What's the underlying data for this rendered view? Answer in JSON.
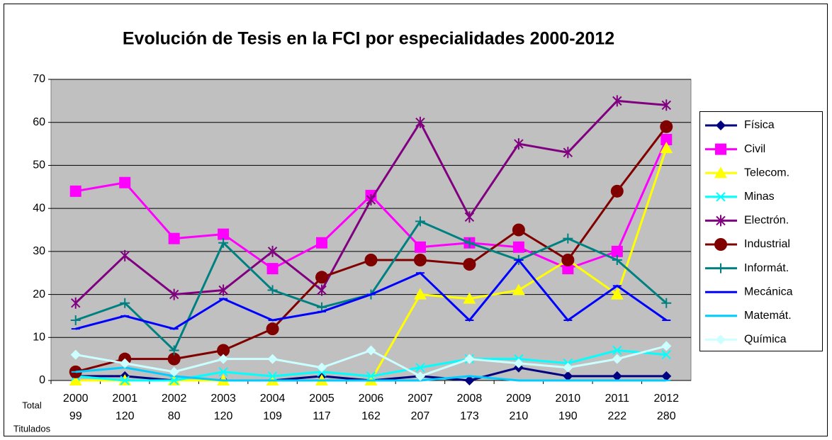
{
  "chart_data": {
    "type": "line",
    "title": "Evolución de Tesis en la FCI por especialidades 2000-2012",
    "categories": [
      "2000",
      "2001",
      "2002",
      "2003",
      "2004",
      "2005",
      "2006",
      "2007",
      "2008",
      "2009",
      "2010",
      "2011",
      "2012"
    ],
    "row_label": [
      "Total",
      "Titulados"
    ],
    "totals": [
      99,
      120,
      80,
      120,
      109,
      117,
      162,
      207,
      173,
      210,
      190,
      222,
      280
    ],
    "ylim": [
      0,
      70
    ],
    "yticks": [
      0,
      10,
      20,
      30,
      40,
      50,
      60,
      70
    ],
    "grid": true,
    "legend": "right",
    "series": [
      {
        "name": "Física",
        "color": "#000080",
        "marker": "diamond",
        "values": [
          1,
          1,
          0,
          0,
          0,
          1,
          0,
          1,
          0,
          3,
          1,
          1,
          1
        ]
      },
      {
        "name": "Civil",
        "color": "#ff00ff",
        "marker": "square",
        "values": [
          44,
          46,
          33,
          34,
          26,
          32,
          43,
          31,
          32,
          31,
          26,
          30,
          56
        ]
      },
      {
        "name": "Telecom.",
        "color": "#ffff00",
        "marker": "triangle",
        "values": [
          0,
          0,
          0,
          0,
          0,
          0,
          0,
          20,
          19,
          21,
          28,
          20,
          54
        ]
      },
      {
        "name": "Minas",
        "color": "#00ffff",
        "marker": "x",
        "values": [
          1,
          0,
          0,
          2,
          1,
          2,
          1,
          3,
          5,
          5,
          4,
          7,
          6
        ]
      },
      {
        "name": "Electrón.",
        "color": "#800080",
        "marker": "star",
        "values": [
          18,
          29,
          20,
          21,
          30,
          21,
          42,
          60,
          38,
          55,
          53,
          65,
          64
        ]
      },
      {
        "name": "Industrial",
        "color": "#800000",
        "marker": "circle",
        "values": [
          2,
          5,
          5,
          7,
          12,
          24,
          28,
          28,
          27,
          35,
          28,
          44,
          59
        ]
      },
      {
        "name": "Informát.",
        "color": "#008080",
        "marker": "plus",
        "values": [
          14,
          18,
          7,
          32,
          21,
          17,
          20,
          37,
          32,
          28,
          33,
          28,
          18
        ]
      },
      {
        "name": "Mecánica",
        "color": "#0000ff",
        "marker": "dash",
        "values": [
          12,
          15,
          12,
          19,
          14,
          16,
          20,
          25,
          14,
          28,
          14,
          22,
          14
        ]
      },
      {
        "name": "Matemát.",
        "color": "#00ccff",
        "marker": "dash",
        "values": [
          2,
          3,
          1,
          0,
          0,
          0,
          0,
          0,
          1,
          0,
          0,
          0,
          0
        ]
      },
      {
        "name": "Química",
        "color": "#ccffff",
        "marker": "diamond",
        "values": [
          6,
          4,
          2,
          5,
          5,
          3,
          7,
          1,
          5,
          4,
          3,
          5,
          8
        ]
      }
    ]
  }
}
